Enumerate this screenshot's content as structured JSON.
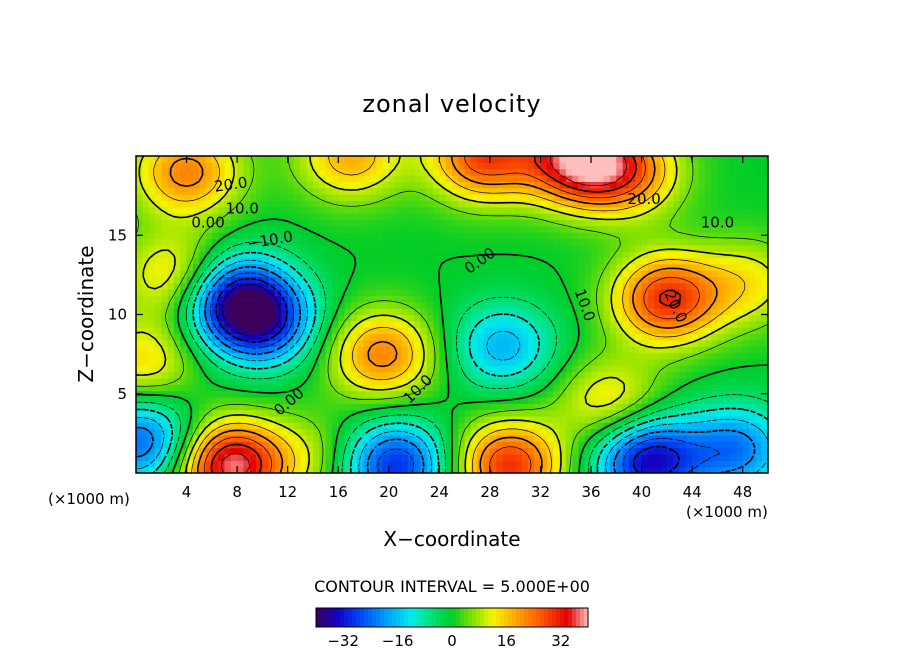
{
  "chart_data": {
    "type": "heatmap",
    "title": "zonal velocity",
    "xlabel": "X−coordinate",
    "ylabel": "Z−coordinate",
    "x_unit_left": "(×1000 m)",
    "x_unit_right": "(×1000 m)",
    "xlim": [
      0,
      50
    ],
    "ylim": [
      0,
      20
    ],
    "x_ticks": [
      {
        "value": 4,
        "label": "4"
      },
      {
        "value": 8,
        "label": "8"
      },
      {
        "value": 12,
        "label": "12"
      },
      {
        "value": 16,
        "label": "16"
      },
      {
        "value": 20,
        "label": "20"
      },
      {
        "value": 24,
        "label": "24"
      },
      {
        "value": 28,
        "label": "28"
      },
      {
        "value": 32,
        "label": "32"
      },
      {
        "value": 36,
        "label": "36"
      },
      {
        "value": 40,
        "label": "40"
      },
      {
        "value": 44,
        "label": "44"
      },
      {
        "value": 48,
        "label": "48"
      }
    ],
    "y_ticks": [
      {
        "value": 5,
        "label": "5"
      },
      {
        "value": 10,
        "label": "10"
      },
      {
        "value": 15,
        "label": "15"
      }
    ],
    "contour_interval_label": "CONTOUR INTERVAL = 5.000E+00",
    "contour_interval": 5,
    "colorbar": {
      "range": [
        -40,
        40
      ],
      "tick_values": [
        -32,
        -16,
        0,
        16,
        32
      ],
      "tick_labels": [
        "−32",
        "−16",
        "0",
        "16",
        "32"
      ]
    },
    "contour_labels": [
      {
        "text": "20.0",
        "x": 7.5,
        "y": 18.2,
        "rot": -8
      },
      {
        "text": "10.0",
        "x": 8.4,
        "y": 16.7,
        "rot": 0
      },
      {
        "text": "0.00",
        "x": 5.7,
        "y": 15.8,
        "rot": 0
      },
      {
        "text": "−10.0",
        "x": 10.6,
        "y": 14.7,
        "rot": -10
      },
      {
        "text": "0.00",
        "x": 27.2,
        "y": 13.4,
        "rot": -35
      },
      {
        "text": "10.0",
        "x": 35.5,
        "y": 10.6,
        "rot": 70
      },
      {
        "text": "20.0",
        "x": 42.7,
        "y": 10.5,
        "rot": 65
      },
      {
        "text": "20.0",
        "x": 40.2,
        "y": 17.3,
        "rot": 0
      },
      {
        "text": "10.0",
        "x": 46.0,
        "y": 15.8,
        "rot": 0
      },
      {
        "text": "0.00",
        "x": 12.1,
        "y": 4.5,
        "rot": -40
      },
      {
        "text": "10.0",
        "x": 22.3,
        "y": 5.3,
        "rot": -45
      }
    ],
    "field_centers": [
      {
        "x": 27.5,
        "y": 20.0,
        "value": 28
      },
      {
        "x": 35.0,
        "y": 19.8,
        "value": 36
      },
      {
        "x": 39.0,
        "y": 19.0,
        "value": 20
      },
      {
        "x": 4.0,
        "y": 19.0,
        "value": 22
      },
      {
        "x": 17.0,
        "y": 20.0,
        "value": 18
      },
      {
        "x": 8.0,
        "y": 11.0,
        "value": -30
      },
      {
        "x": 10.0,
        "y": 9.5,
        "value": -25
      },
      {
        "x": 3.0,
        "y": 12.5,
        "value": 15
      },
      {
        "x": 19.5,
        "y": 7.5,
        "value": 22
      },
      {
        "x": 29.0,
        "y": 8.0,
        "value": -17
      },
      {
        "x": 42.0,
        "y": 11.0,
        "value": 30
      },
      {
        "x": 48.5,
        "y": 12.0,
        "value": 12
      },
      {
        "x": 7.5,
        "y": 0.5,
        "value": 38
      },
      {
        "x": 20.5,
        "y": 0.5,
        "value": -30
      },
      {
        "x": 29.5,
        "y": 0.5,
        "value": 30
      },
      {
        "x": 40.5,
        "y": 0.8,
        "value": -34
      },
      {
        "x": 0.5,
        "y": 2.0,
        "value": -25
      },
      {
        "x": 0.5,
        "y": 7.0,
        "value": 14
      },
      {
        "x": 37.5,
        "y": 4.5,
        "value": 14
      },
      {
        "x": 14.0,
        "y": 1.0,
        "value": 8
      },
      {
        "x": 47.5,
        "y": 1.5,
        "value": -22
      }
    ]
  }
}
